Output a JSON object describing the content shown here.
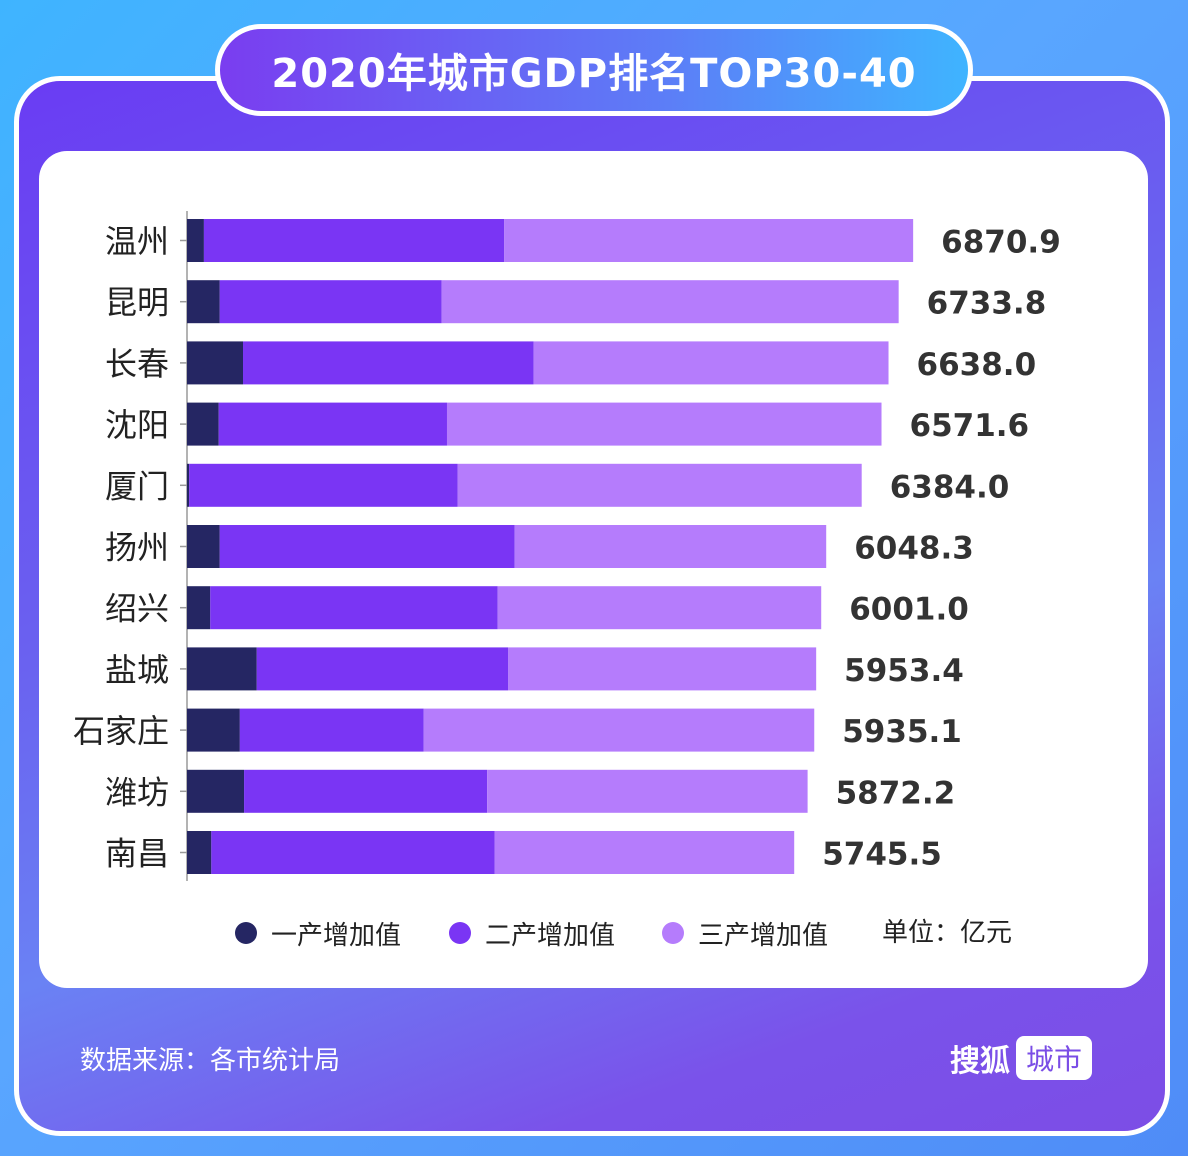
{
  "title": "2020年城市GDP排名TOP30-40",
  "chart_data": {
    "type": "bar",
    "orientation": "horizontal",
    "stacked": true,
    "categories": [
      "温州",
      "昆明",
      "长春",
      "沈阳",
      "厦门",
      "扬州",
      "绍兴",
      "盐城",
      "石家庄",
      "潍坊",
      "南昌"
    ],
    "totals": [
      6870.9,
      6733.8,
      6638.0,
      6571.6,
      6384.0,
      6048.3,
      6001.0,
      5953.4,
      5935.1,
      5872.2,
      5745.5
    ],
    "total_labels": [
      "6870.9",
      "6733.8",
      "6638.0",
      "6571.6",
      "6384.0",
      "6048.3",
      "6001.0",
      "5953.4",
      "5935.1",
      "5872.2",
      "5745.5"
    ],
    "series": [
      {
        "name": "一产增加值",
        "color": "#252663",
        "values": [
          160,
          310,
          530,
          300,
          20,
          310,
          220,
          660,
          500,
          540,
          230
        ]
      },
      {
        "name": "二产增加值",
        "color": "#7a35f4",
        "values": [
          2840,
          2100,
          2750,
          2160,
          2540,
          2790,
          2720,
          2380,
          1740,
          2300,
          2680
        ]
      },
      {
        "name": "三产增加值",
        "color": "#b57cfc",
        "values": [
          3870.9,
          4323.8,
          3358.0,
          4111.6,
          3824.0,
          2948.3,
          3061.0,
          2913.4,
          3695.1,
          3032.2,
          2835.5
        ]
      }
    ],
    "unit_label": "单位：亿元",
    "xlim": [
      0,
      9500
    ],
    "grid": false,
    "legend_position": "bottom"
  },
  "footer": {
    "source": "数据来源：各市统计局",
    "brand": "搜狐",
    "brand_tag": "城市"
  }
}
